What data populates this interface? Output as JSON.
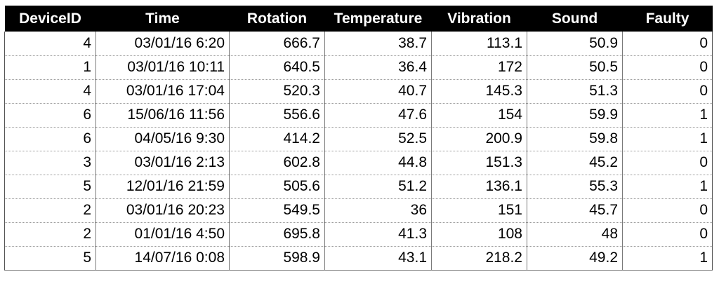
{
  "table": {
    "headers": [
      "DeviceID",
      "Time",
      "Rotation",
      "Temperature",
      "Vibration",
      "Sound",
      "Faulty"
    ],
    "rows": [
      [
        "4",
        "03/01/16 6:20",
        "666.7",
        "38.7",
        "113.1",
        "50.9",
        "0"
      ],
      [
        "1",
        "03/01/16 10:11",
        "640.5",
        "36.4",
        "172",
        "50.5",
        "0"
      ],
      [
        "4",
        "03/01/16 17:04",
        "520.3",
        "40.7",
        "145.3",
        "51.3",
        "0"
      ],
      [
        "6",
        "15/06/16 11:56",
        "556.6",
        "47.6",
        "154",
        "59.9",
        "1"
      ],
      [
        "6",
        "04/05/16 9:30",
        "414.2",
        "52.5",
        "200.9",
        "59.8",
        "1"
      ],
      [
        "3",
        "03/01/16 2:13",
        "602.8",
        "44.8",
        "151.3",
        "45.2",
        "0"
      ],
      [
        "5",
        "12/01/16 21:59",
        "505.6",
        "51.2",
        "136.1",
        "55.3",
        "1"
      ],
      [
        "2",
        "03/01/16 20:23",
        "549.5",
        "36",
        "151",
        "45.7",
        "0"
      ],
      [
        "2",
        "01/01/16 4:50",
        "695.8",
        "41.3",
        "108",
        "48",
        "0"
      ],
      [
        "5",
        "14/07/16 0:08",
        "598.9",
        "43.1",
        "218.2",
        "49.2",
        "1"
      ]
    ]
  },
  "colors": {
    "header_background": "#000000",
    "header_text": "#ffffff",
    "cell_text": "#000000",
    "grid_line": "#7a7a7a"
  }
}
